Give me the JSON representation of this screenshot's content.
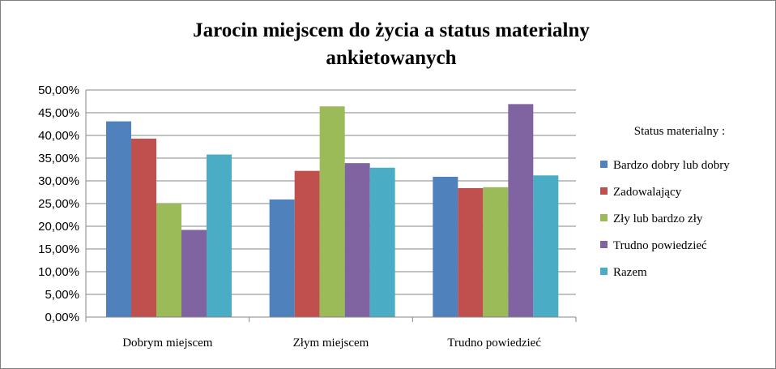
{
  "chart_data": {
    "type": "bar",
    "title_lines": [
      "Jarocin miejscem do życia a status materialny",
      "ankietowanych"
    ],
    "categories": [
      "Dobrym miejscem",
      "Złym miejscem",
      "Trudno powiedzieć"
    ],
    "series": [
      {
        "name": "Bardzo dobry lub dobry",
        "color": "#4f81bd",
        "values": [
          43.1,
          25.9,
          30.9
        ]
      },
      {
        "name": "Zadowalający",
        "color": "#c0504d",
        "values": [
          39.3,
          32.2,
          28.4
        ]
      },
      {
        "name": "Zły lub bardzo zły",
        "color": "#9bbb59",
        "values": [
          25.0,
          46.4,
          28.6
        ]
      },
      {
        "name": "Trudno powiedzieć",
        "color": "#8064a2",
        "values": [
          19.2,
          33.9,
          46.9
        ]
      },
      {
        "name": "Razem",
        "color": "#4bacc6",
        "values": [
          35.8,
          32.9,
          31.2
        ]
      }
    ],
    "ylim": [
      0,
      50
    ],
    "yticks": [
      "0,00%",
      "5,00%",
      "10,00%",
      "15,00%",
      "20,00%",
      "25,00%",
      "30,00%",
      "35,00%",
      "40,00%",
      "45,00%",
      "50,00%"
    ],
    "legend_title": "Status materialny :",
    "legend_position": "right",
    "grid": true
  }
}
